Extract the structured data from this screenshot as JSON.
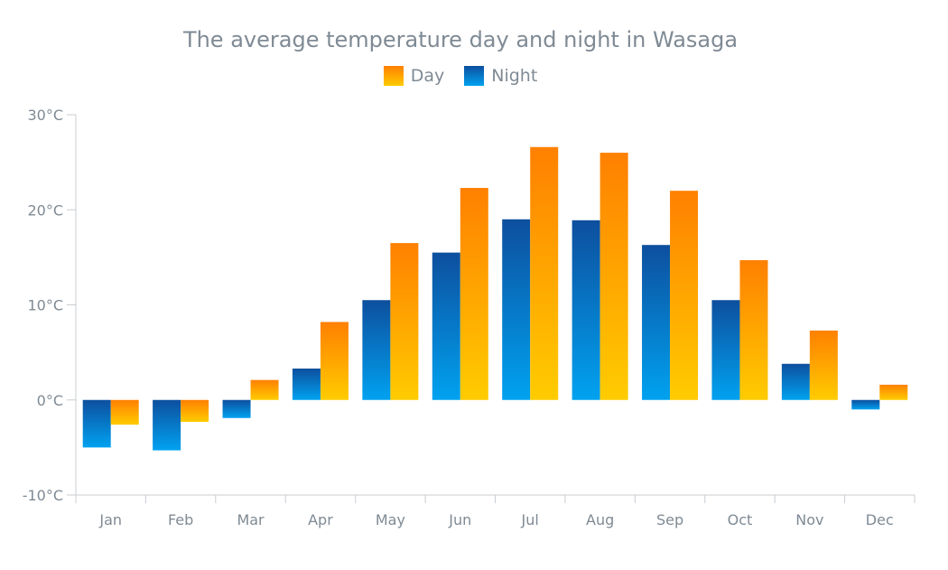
{
  "chart_data": {
    "type": "bar",
    "title": "The average temperature day and night in Wasaga",
    "categories": [
      "Jan",
      "Feb",
      "Mar",
      "Apr",
      "May",
      "Jun",
      "Jul",
      "Aug",
      "Sep",
      "Oct",
      "Nov",
      "Dec"
    ],
    "series": [
      {
        "name": "Night",
        "values": [
          -5.0,
          -5.3,
          -1.9,
          3.3,
          10.5,
          15.5,
          19.0,
          18.9,
          16.3,
          10.5,
          3.8,
          -1.0
        ]
      },
      {
        "name": "Day",
        "values": [
          -2.6,
          -2.3,
          2.1,
          8.2,
          16.5,
          22.3,
          26.6,
          26.0,
          22.0,
          14.7,
          7.3,
          1.6
        ]
      }
    ],
    "unit": "°C",
    "ylim": [
      -10,
      30
    ],
    "yticks": [
      -10,
      0,
      10,
      20,
      30
    ],
    "ytick_labels": [
      "-10°C",
      "0°C",
      "10°C",
      "20°C",
      "30°C"
    ],
    "legend_position": "top-center",
    "grid": false,
    "colors": {
      "day_top": "#ff8000",
      "day_bottom": "#ffcc00",
      "night_top": "#0d4f9e",
      "night_bottom": "#00a2f0",
      "axis": "#c8cdd2",
      "text": "#7f8a94"
    }
  }
}
